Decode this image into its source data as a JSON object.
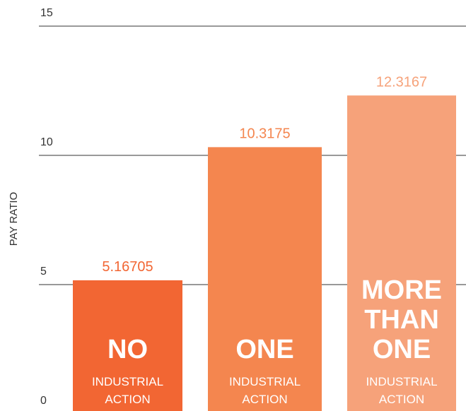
{
  "chart_data": {
    "type": "bar",
    "y_label": "PAY RATIO",
    "categories": [
      "NO",
      "ONE",
      "MORE THAN ONE"
    ],
    "bar_sublabel": "INDUSTRIAL ACTION",
    "values": [
      5.16705,
      10.3175,
      12.3167
    ],
    "colors": [
      "#f26633",
      "#f4864f",
      "#f6a27a"
    ],
    "ylim": [
      0,
      15
    ],
    "yticks": [
      0,
      5,
      10,
      15
    ],
    "grid": true
  }
}
